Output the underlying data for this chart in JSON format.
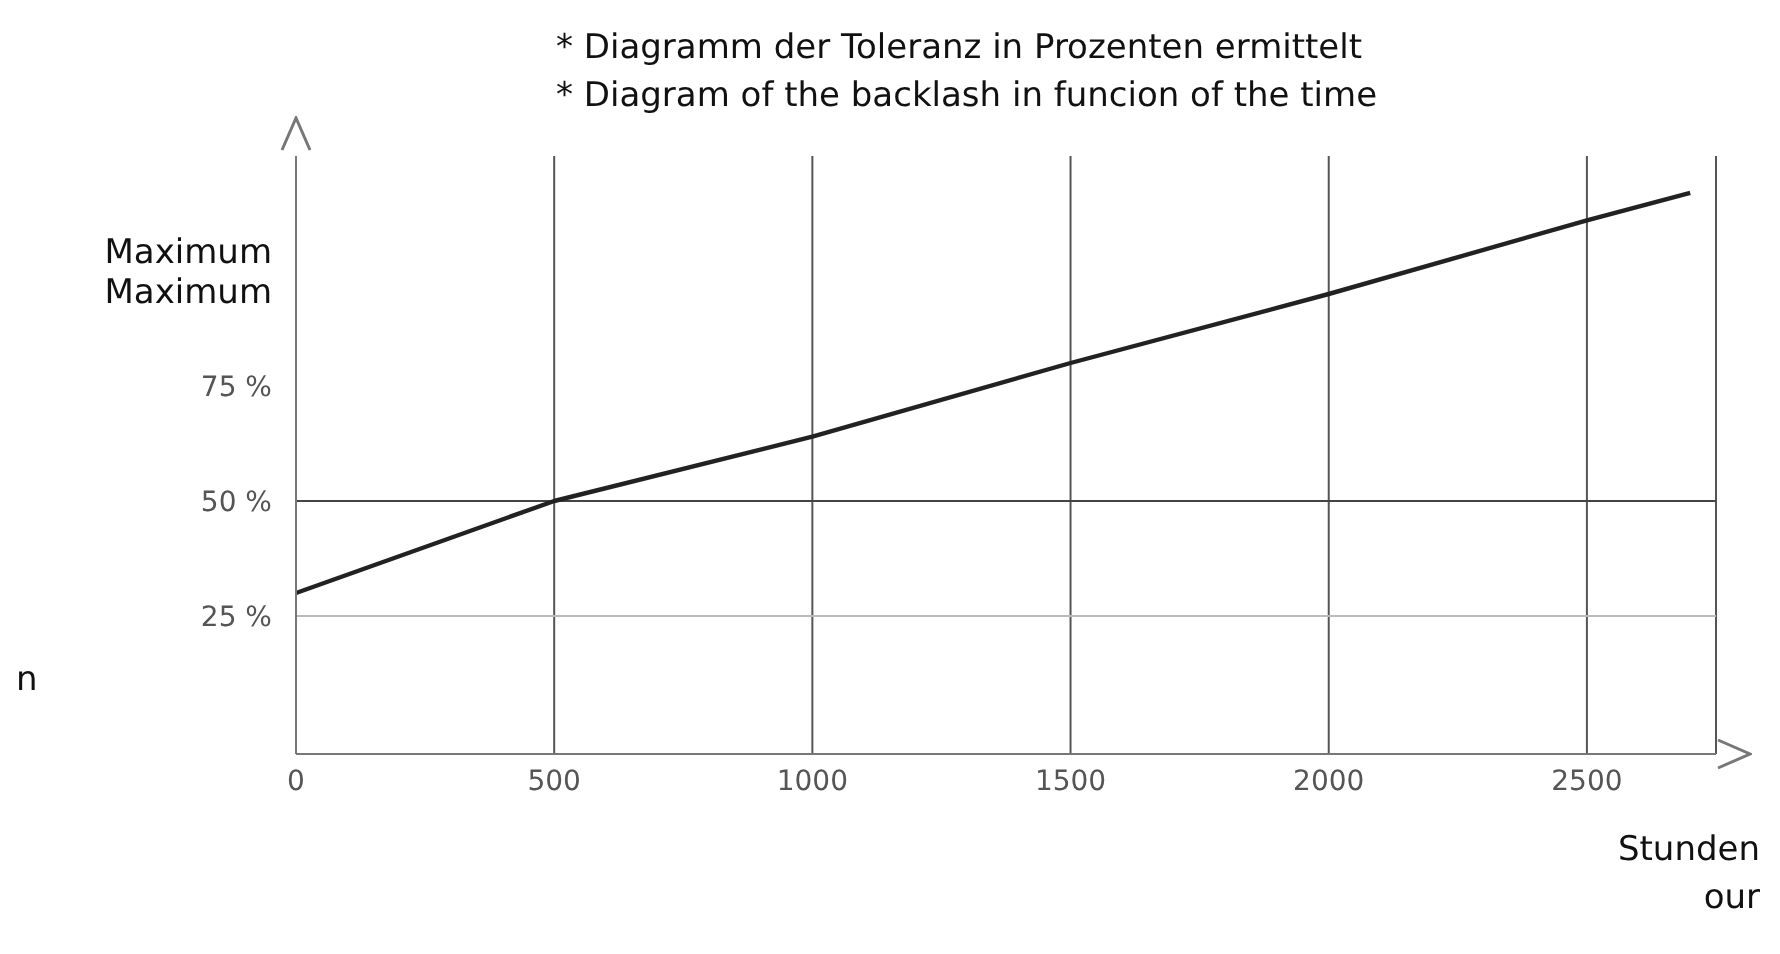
{
  "chart_data": {
    "type": "line",
    "title": "* Diagramm der Toleranz in Prozenten ermittelt",
    "subtitle": "* Diagram of the backlash in funcion of the time",
    "xlabel": "Stunden our",
    "annotations": [
      "n"
    ],
    "series": [
      {
        "color": "#222222",
        "x": [
          0,
          500,
          1000,
          1500,
          2000,
          2500,
          2700
        ],
        "values": [
          30,
          50,
          64,
          80,
          95,
          111,
          117
        ]
      }
    ],
    "xlim": [
      0,
      2750
    ],
    "xticks": [
      0,
      500,
      1000,
      1500,
      2000,
      2500
    ],
    "ylim": [
      -5,
      125
    ],
    "yticks": [
      {
        "value": 25,
        "label": "25 %"
      },
      {
        "value": 50,
        "label": "50 %"
      },
      {
        "value": 75,
        "label": "75 %"
      },
      {
        "value": 100,
        "label": "Maximum Maximum"
      }
    ],
    "grid": "x",
    "marker": "none",
    "line_style": "solid",
    "ref_lines": [
      {
        "axis": "y",
        "value": 25,
        "color": "#bbbbbb"
      },
      {
        "axis": "y",
        "value": 50,
        "color": "#444444"
      }
    ]
  }
}
